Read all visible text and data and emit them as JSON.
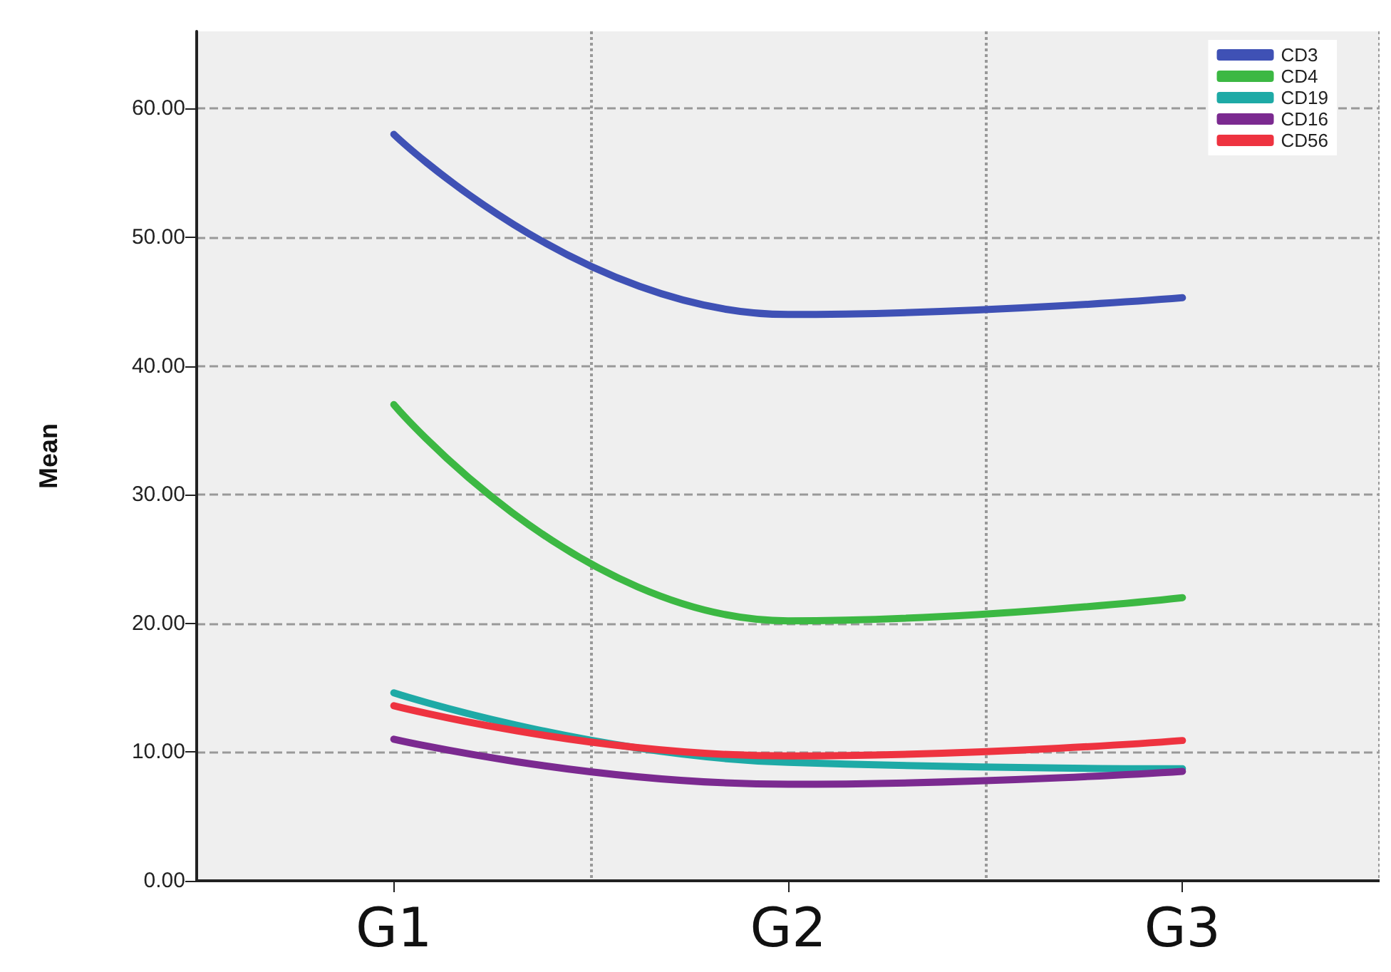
{
  "chart_data": {
    "type": "line",
    "ylabel": "Mean",
    "categories": [
      "G1",
      "G2",
      "G3"
    ],
    "series": [
      {
        "name": "CD3",
        "color": "#3f51b5",
        "values": [
          58.0,
          44.0,
          45.3
        ]
      },
      {
        "name": "CD4",
        "color": "#3cb843",
        "values": [
          37.0,
          20.2,
          22.0
        ]
      },
      {
        "name": "CD19",
        "color": "#1eaaa6",
        "values": [
          14.6,
          9.2,
          8.7
        ]
      },
      {
        "name": "CD16",
        "color": "#7b2a90",
        "values": [
          11.0,
          7.5,
          8.5
        ]
      },
      {
        "name": "CD56",
        "color": "#ee3340",
        "values": [
          13.6,
          9.7,
          10.9
        ]
      }
    ],
    "ylim": [
      0,
      66
    ],
    "yticks": [
      {
        "value": 0,
        "label": "0.00"
      },
      {
        "value": 10,
        "label": "10.00"
      },
      {
        "value": 20,
        "label": "20.00"
      },
      {
        "value": 30,
        "label": "30.00"
      },
      {
        "value": 40,
        "label": "40.00"
      },
      {
        "value": 50,
        "label": "50.00"
      },
      {
        "value": 60,
        "label": "60.00"
      }
    ],
    "grid": true,
    "line_style": "solid",
    "marker": "none",
    "legend": "top right"
  }
}
